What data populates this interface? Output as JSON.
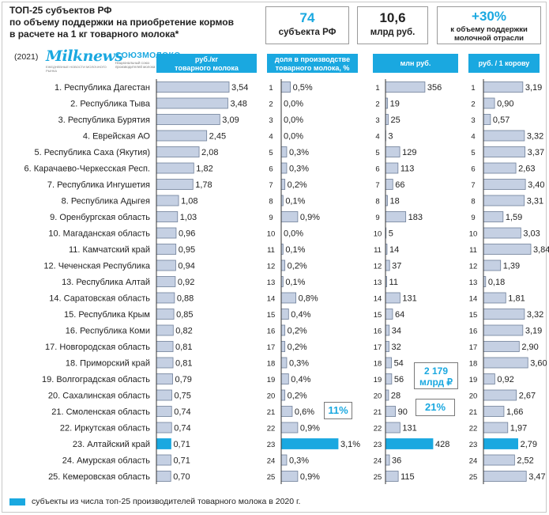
{
  "title": [
    "ТОП-25 субъектов РФ",
    "по объему поддержки на приобретение кормов",
    "в расчете на 1 кг товарного молока*"
  ],
  "kpis": [
    {
      "value": "74",
      "label": "субъекта РФ"
    },
    {
      "value": "10,6",
      "label": "млрд руб."
    },
    {
      "value": "+30%",
      "label": "к объему поддержки молочной отрасли"
    }
  ],
  "year": "(2021)",
  "logos": {
    "milknews": "Milknews",
    "milknews_tagline": "ЕЖЕДНЕВНЫЕ НОВОСТИ МОЛОЧНОГО РЫНКА",
    "soyuzmoloko": "СОЮЗМОЛОКО",
    "soyuzmoloko_tagline": "Национальный союз производителей молока"
  },
  "colors": {
    "accent": "#1aa8e0",
    "bar": "#c5d0e3",
    "bar_border": "#6f7f99",
    "highlight": "#1aa8e0"
  },
  "chart_data": {
    "type": "bar",
    "categories": [
      "1. Республика Дагестан",
      "2. Республика Тыва",
      "3. Республика Бурятия",
      "4. Еврейская АО",
      "5. Республика Саха (Якутия)",
      "6. Карачаево-Черкесская Респ.",
      "7. Республика Ингушетия",
      "8. Республика Адыгея",
      "9. Оренбургская область",
      "10. Магаданская область",
      "11. Камчатский край",
      "12. Чеченская Республика",
      "13. Республика Алтай",
      "14. Саратовская область",
      "15. Республика Крым",
      "16. Республика Коми",
      "17. Новгородская область",
      "18. Приморский край",
      "19. Волгоградская область",
      "20. Сахалинская область",
      "21. Смоленская область",
      "22. Иркутская область",
      "23. Алтайский край",
      "24. Амурская область",
      "25. Кемеровская область"
    ],
    "ranks": [
      "1",
      "2",
      "3",
      "4",
      "5",
      "6",
      "7",
      "8",
      "9",
      "10",
      "11",
      "12",
      "13",
      "14",
      "15",
      "16",
      "17",
      "18",
      "19",
      "20",
      "21",
      "22",
      "23",
      "24",
      "25"
    ],
    "highlight_index": 22,
    "series": [
      {
        "name": "руб./кг товарного молока",
        "values": [
          3.54,
          3.48,
          3.09,
          2.45,
          2.08,
          1.82,
          1.78,
          1.08,
          1.03,
          0.96,
          0.95,
          0.94,
          0.92,
          0.88,
          0.85,
          0.82,
          0.81,
          0.81,
          0.79,
          0.75,
          0.74,
          0.74,
          0.71,
          0.71,
          0.7
        ],
        "labels": [
          "3,54",
          "3,48",
          "3,09",
          "2,45",
          "2,08",
          "1,82",
          "1,78",
          "1,08",
          "1,03",
          "0,96",
          "0,95",
          "0,94",
          "0,92",
          "0,88",
          "0,85",
          "0,82",
          "0,81",
          "0,81",
          "0,79",
          "0,75",
          "0,74",
          "0,74",
          "0,71",
          "0,71",
          "0,70"
        ]
      },
      {
        "name": "доля в производстве товарного молока, %",
        "values": [
          0.5,
          0.0,
          0.0,
          0.0,
          0.3,
          0.3,
          0.2,
          0.1,
          0.9,
          0.0,
          0.1,
          0.2,
          0.1,
          0.8,
          0.4,
          0.2,
          0.2,
          0.3,
          0.4,
          0.2,
          0.6,
          0.9,
          3.1,
          0.3,
          0.9
        ],
        "labels": [
          "0,5%",
          "0,0%",
          "0,0%",
          "0,0%",
          "0,3%",
          "0,3%",
          "0,2%",
          "0,1%",
          "0,9%",
          "0,0%",
          "0,1%",
          "0,2%",
          "0,1%",
          "0,8%",
          "0,4%",
          "0,2%",
          "0,2%",
          "0,3%",
          "0,4%",
          "0,2%",
          "0,6%",
          "0,9%",
          "3,1%",
          "0,3%",
          "0,9%"
        ]
      },
      {
        "name": "млн руб.",
        "values": [
          356,
          19,
          25,
          3,
          129,
          113,
          66,
          18,
          183,
          5,
          14,
          37,
          11,
          131,
          64,
          34,
          32,
          54,
          56,
          28,
          90,
          131,
          428,
          36,
          115
        ],
        "labels": [
          "356",
          "19",
          "25",
          "3",
          "129",
          "113",
          "66",
          "18",
          "183",
          "5",
          "14",
          "37",
          "11",
          "131",
          "64",
          "34",
          "32",
          "54",
          "56",
          "28",
          "90",
          "131",
          "428",
          "36",
          "115"
        ]
      },
      {
        "name": "руб. / 1 корову",
        "values": [
          3.19,
          0.9,
          0.57,
          3.32,
          3.37,
          2.63,
          3.4,
          3.31,
          1.59,
          3.03,
          3.84,
          1.39,
          0.18,
          1.81,
          3.32,
          3.19,
          2.9,
          3.6,
          0.92,
          2.67,
          1.66,
          1.97,
          2.79,
          2.52,
          3.47
        ],
        "labels": [
          "3,19",
          "0,90",
          "0,57",
          "3,32",
          "3,37",
          "2,63",
          "3,40",
          "3,31",
          "1,59",
          "3,03",
          "3,84",
          "1,39",
          "0,18",
          "1,81",
          "3,32",
          "3,19",
          "2,90",
          "3,60",
          "0,92",
          "2,67",
          "1,66",
          "1,97",
          "2,79",
          "2,52",
          "3,47"
        ]
      }
    ],
    "headers": [
      "руб./кг\nтоварного молока",
      "доля в производстве\nтоварного молока, %",
      "млн руб.",
      "руб. / 1 корову"
    ],
    "annotations": {
      "share_total": "11%",
      "rub_total": "2 179\nмлрд ₽",
      "rub_share": "21%"
    },
    "legend": "субъекты из числа топ-25 производителей товарного молока в 2020 г."
  }
}
